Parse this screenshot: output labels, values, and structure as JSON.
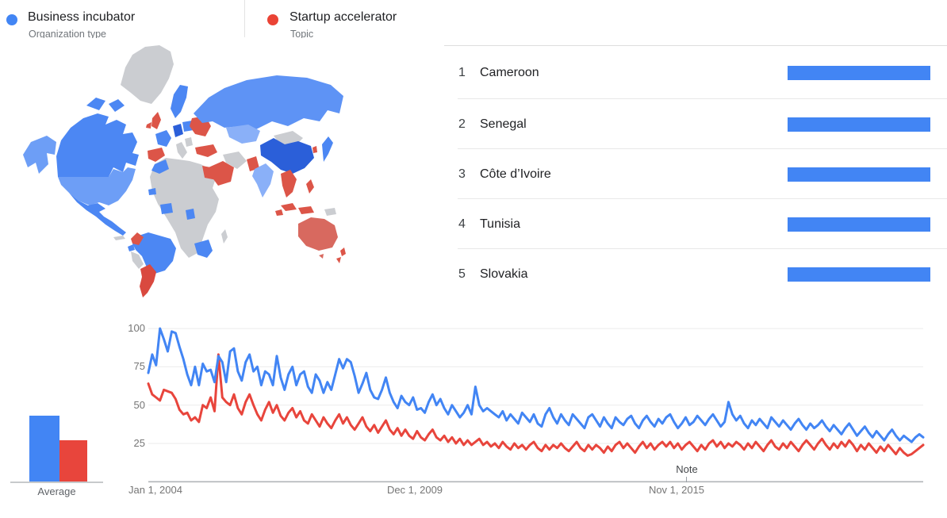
{
  "legend": {
    "items": [
      {
        "label": "Business incubator",
        "sublabel": "Organization type"
      },
      {
        "label": "Startup accelerator",
        "sublabel": "Topic"
      }
    ]
  },
  "colors": {
    "c-blue": "#4285f4",
    "c-red": "#e8453c",
    "legend-blue": "#4285f4",
    "legend-red": "#ea4335",
    "m-blue": "#4c87f3",
    "m-blue-light": "#6d9ef6",
    "m-blue-lighter": "#8ab0f8",
    "m-blue-mid": "#5e93f5",
    "m-blue-dark": "#2b5fd9",
    "m-gray": "#cbcdd1",
    "m-red": "#dc5548",
    "m-red-strong": "#d9493f",
    "m-red-soft": "#d8695f"
  },
  "chart_data": [
    {
      "id": "map",
      "type": "choropleth",
      "description": "World map comparing which search term leads by region; blue = Business incubator leads, red = Startup accelerator leads, gray = insufficient data",
      "blue_leading_regions": [
        "Canada",
        "United States",
        "Mexico",
        "Brazil",
        "Venezuela",
        "Ecuador",
        "France",
        "Germany",
        "Poland",
        "Scandinavia",
        "Russia",
        "Kazakhstan",
        "China",
        "India",
        "Japan",
        "Morocco",
        "Senegal",
        "Côte d'Ivoire",
        "Ghana",
        "Cameroon",
        "South Africa"
      ],
      "red_leading_regions": [
        "Colombia",
        "Chile",
        "Argentina",
        "United Kingdom",
        "Ireland",
        "Spain",
        "Portugal",
        "Ukraine",
        "Turkey",
        "Egypt",
        "Saudi Arabia",
        "Pakistan",
        "South Korea",
        "Vietnam",
        "Thailand",
        "Malaysia",
        "Indonesia",
        "Philippines",
        "Australia",
        "New Zealand"
      ],
      "no_data_regions": [
        "Greenland",
        "Peru",
        "Bolivia",
        "Algeria",
        "Libya",
        "Sudan",
        "Chad",
        "Niger",
        "Mali",
        "Italy",
        "Iran",
        "Mongolia",
        "Papua New Guinea",
        "Madagascar"
      ]
    },
    {
      "id": "region_list",
      "type": "table",
      "rows": [
        {
          "rank": "1",
          "name": "Cameroon",
          "value": 100
        },
        {
          "rank": "2",
          "name": "Senegal",
          "value": 100
        },
        {
          "rank": "3",
          "name": "Côte d’Ivoire",
          "value": 100
        },
        {
          "rank": "4",
          "name": "Tunisia",
          "value": 100
        },
        {
          "rank": "5",
          "name": "Slovakia",
          "value": 100
        }
      ]
    },
    {
      "id": "timeline",
      "type": "line",
      "ylim": [
        0,
        100
      ],
      "y_tick_labels": [
        "100",
        "75",
        "50",
        "25"
      ],
      "y_ticks": [
        100,
        75,
        50,
        25
      ],
      "x_tick_labels": [
        "Jan 1, 2004",
        "Dec 1, 2009",
        "Nov 1, 2015"
      ],
      "annotation": "Note",
      "grid": true,
      "series": [
        {
          "name": "Business incubator",
          "color_key": "c-blue",
          "values": [
            71,
            83,
            76,
            100,
            93,
            85,
            98,
            97,
            88,
            80,
            70,
            63,
            75,
            63,
            77,
            72,
            73,
            65,
            82,
            78,
            65,
            85,
            87,
            72,
            66,
            78,
            83,
            72,
            75,
            63,
            72,
            70,
            63,
            82,
            68,
            60,
            70,
            75,
            63,
            70,
            72,
            62,
            58,
            70,
            66,
            58,
            65,
            60,
            70,
            80,
            74,
            80,
            78,
            69,
            58,
            64,
            71,
            60,
            55,
            54,
            60,
            68,
            58,
            52,
            48,
            56,
            52,
            50,
            55,
            47,
            48,
            45,
            52,
            57,
            50,
            54,
            48,
            44,
            50,
            46,
            42,
            45,
            50,
            44,
            62,
            50,
            46,
            48,
            46,
            44,
            42,
            46,
            40,
            44,
            41,
            38,
            45,
            42,
            39,
            44,
            38,
            36,
            44,
            48,
            42,
            38,
            44,
            40,
            37,
            44,
            41,
            38,
            35,
            42,
            44,
            40,
            36,
            42,
            38,
            35,
            42,
            39,
            37,
            41,
            43,
            38,
            35,
            40,
            43,
            39,
            36,
            41,
            38,
            42,
            44,
            39,
            35,
            38,
            42,
            37,
            39,
            43,
            40,
            37,
            41,
            44,
            40,
            36,
            39,
            52,
            44,
            40,
            43,
            38,
            35,
            40,
            37,
            41,
            38,
            35,
            42,
            39,
            36,
            40,
            37,
            34,
            38,
            41,
            37,
            34,
            38,
            35,
            37,
            40,
            36,
            33,
            37,
            34,
            31,
            35,
            38,
            34,
            30,
            33,
            36,
            32,
            29,
            33,
            30,
            27,
            31,
            34,
            30,
            27,
            30,
            28,
            26,
            29,
            31,
            29
          ]
        },
        {
          "name": "Startup accelerator",
          "color_key": "c-red",
          "values": [
            64,
            57,
            55,
            53,
            60,
            59,
            58,
            54,
            47,
            44,
            45,
            40,
            42,
            39,
            50,
            48,
            55,
            46,
            83,
            55,
            52,
            50,
            57,
            48,
            44,
            52,
            57,
            50,
            44,
            40,
            47,
            52,
            45,
            50,
            43,
            40,
            45,
            48,
            42,
            46,
            40,
            38,
            44,
            40,
            36,
            42,
            38,
            35,
            40,
            44,
            38,
            42,
            37,
            34,
            38,
            42,
            36,
            33,
            37,
            32,
            36,
            40,
            34,
            31,
            35,
            30,
            34,
            30,
            28,
            33,
            29,
            27,
            31,
            34,
            29,
            27,
            30,
            26,
            29,
            25,
            28,
            24,
            27,
            24,
            26,
            28,
            24,
            26,
            23,
            25,
            22,
            26,
            23,
            21,
            25,
            22,
            24,
            21,
            24,
            26,
            22,
            20,
            24,
            21,
            24,
            22,
            25,
            22,
            20,
            23,
            26,
            22,
            20,
            24,
            21,
            24,
            22,
            19,
            23,
            20,
            24,
            26,
            22,
            25,
            22,
            19,
            23,
            26,
            22,
            25,
            21,
            24,
            26,
            23,
            26,
            22,
            25,
            21,
            24,
            26,
            23,
            20,
            24,
            21,
            25,
            27,
            23,
            26,
            22,
            25,
            23,
            26,
            24,
            21,
            25,
            22,
            26,
            23,
            20,
            24,
            27,
            23,
            21,
            25,
            22,
            26,
            23,
            20,
            24,
            27,
            24,
            21,
            25,
            28,
            24,
            21,
            25,
            22,
            26,
            23,
            27,
            24,
            20,
            24,
            21,
            25,
            22,
            19,
            23,
            20,
            24,
            21,
            18,
            22,
            19,
            17,
            18,
            20,
            22,
            24
          ]
        }
      ]
    },
    {
      "id": "average",
      "type": "bar",
      "categories": [
        "Average"
      ],
      "ylim": [
        0,
        100
      ],
      "series": [
        {
          "name": "Business incubator",
          "color_key": "c-blue",
          "value": 43
        },
        {
          "name": "Startup accelerator",
          "color_key": "c-red",
          "value": 27
        }
      ]
    }
  ]
}
